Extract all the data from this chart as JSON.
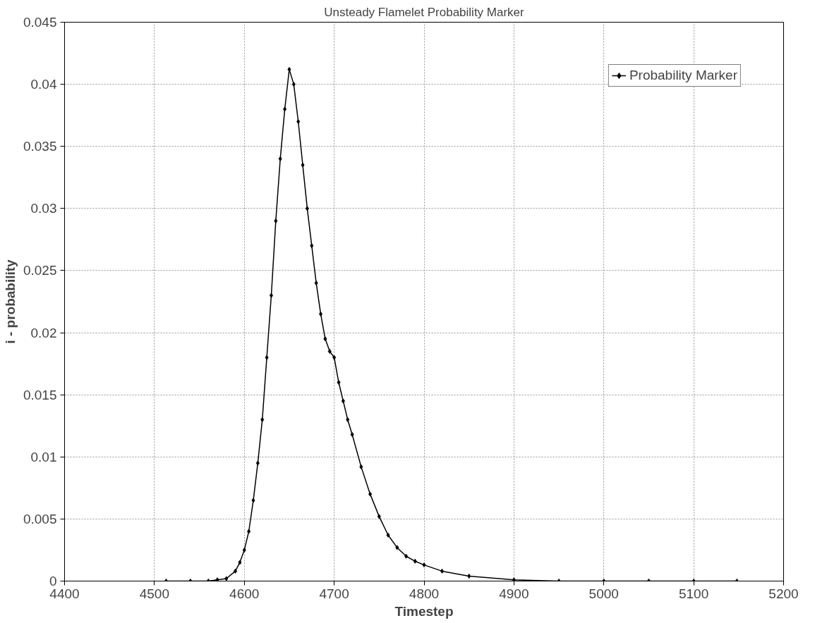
{
  "chart_data": {
    "type": "line",
    "title": "Unsteady Flamelet Probability Marker",
    "xlabel": "Timestep",
    "ylabel": "i - probability",
    "xlim": [
      4400,
      5200
    ],
    "xticks": [
      4400,
      4500,
      4600,
      4700,
      4800,
      4900,
      5000,
      5100,
      5200
    ],
    "ylim": [
      0,
      0.045
    ],
    "yticks": [
      0,
      0.005,
      0.01,
      0.015,
      0.02,
      0.025,
      0.03,
      0.035,
      0.04,
      0.045
    ],
    "grid": true,
    "legend": "top right",
    "marker": "diamond",
    "line_style": "solid",
    "series": [
      {
        "name": "Probability Marker",
        "color": "#000000",
        "x": [
          4513,
          4540,
          4560,
          4570,
          4580,
          4590,
          4595,
          4600,
          4605,
          4610,
          4615,
          4620,
          4625,
          4630,
          4635,
          4640,
          4645,
          4650,
          4655,
          4660,
          4665,
          4670,
          4675,
          4680,
          4685,
          4690,
          4695,
          4700,
          4705,
          4710,
          4715,
          4720,
          4730,
          4740,
          4750,
          4760,
          4770,
          4780,
          4790,
          4800,
          4820,
          4850,
          4900,
          4950,
          5000,
          5050,
          5100,
          5148
        ],
        "values": [
          0,
          0,
          0,
          0.0001,
          0.0002,
          0.0008,
          0.0015,
          0.0025,
          0.004,
          0.0065,
          0.0095,
          0.013,
          0.018,
          0.023,
          0.029,
          0.034,
          0.038,
          0.0412,
          0.04,
          0.037,
          0.0335,
          0.03,
          0.027,
          0.024,
          0.0215,
          0.0195,
          0.0185,
          0.018,
          0.016,
          0.0145,
          0.013,
          0.0118,
          0.0092,
          0.007,
          0.0052,
          0.0037,
          0.0027,
          0.002,
          0.0016,
          0.0013,
          0.0008,
          0.0004,
          0.0001,
          0,
          0,
          0,
          0,
          0
        ]
      }
    ]
  }
}
